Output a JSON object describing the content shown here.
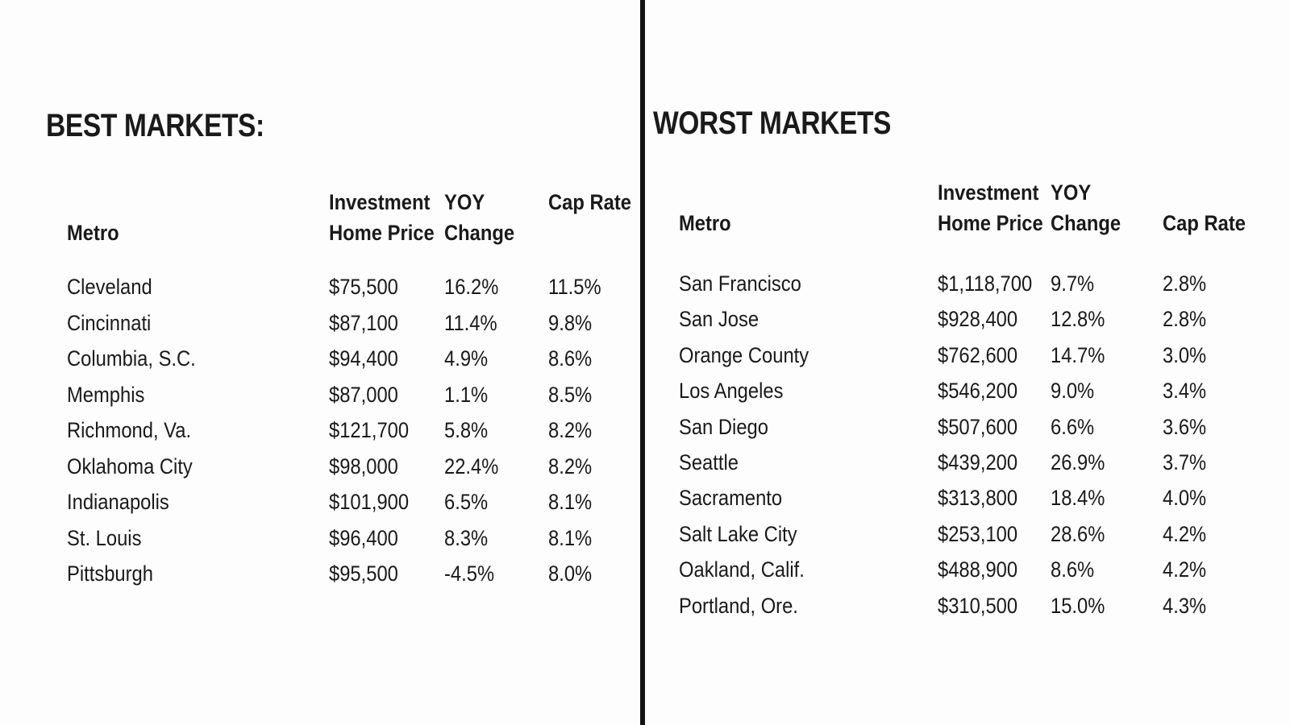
{
  "colors": {
    "text": "#1a1a1a",
    "divider": "#131313",
    "background": "#fdfdfd"
  },
  "chart_data": [
    {
      "type": "table",
      "title": "BEST MARKETS:",
      "columns": [
        {
          "line1": "",
          "line2": "Metro"
        },
        {
          "line1": "Investment",
          "line2": "Home Price"
        },
        {
          "line1": "YOY",
          "line2": "Change"
        },
        {
          "line1": "Cap Rate",
          "line2": ""
        }
      ],
      "rows": [
        {
          "metro": "Cleveland",
          "price": "$75,500",
          "yoy": "16.2%",
          "cap": "11.5%"
        },
        {
          "metro": "Cincinnati",
          "price": "$87,100",
          "yoy": "11.4%",
          "cap": "9.8%"
        },
        {
          "metro": "Columbia, S.C.",
          "price": "$94,400",
          "yoy": "4.9%",
          "cap": "8.6%"
        },
        {
          "metro": "Memphis",
          "price": "$87,000",
          "yoy": "1.1%",
          "cap": "8.5%"
        },
        {
          "metro": "Richmond, Va.",
          "price": "$121,700",
          "yoy": "5.8%",
          "cap": "8.2%"
        },
        {
          "metro": "Oklahoma City",
          "price": "$98,000",
          "yoy": "22.4%",
          "cap": "8.2%"
        },
        {
          "metro": "Indianapolis",
          "price": "$101,900",
          "yoy": "6.5%",
          "cap": "8.1%"
        },
        {
          "metro": "St. Louis",
          "price": "$96,400",
          "yoy": "8.3%",
          "cap": "8.1%"
        },
        {
          "metro": "Pittsburgh",
          "price": "$95,500",
          "yoy": "-4.5%",
          "cap": "8.0%"
        }
      ]
    },
    {
      "type": "table",
      "title": "WORST MARKETS",
      "columns": [
        {
          "line1": "",
          "line2": "Metro"
        },
        {
          "line1": "Investment",
          "line2": "Home Price"
        },
        {
          "line1": "YOY",
          "line2": "Change"
        },
        {
          "line1": "",
          "line2": "Cap Rate"
        }
      ],
      "rows": [
        {
          "metro": "San Francisco",
          "price": "$1,118,700",
          "yoy": "9.7%",
          "cap": "2.8%"
        },
        {
          "metro": "San Jose",
          "price": "$928,400",
          "yoy": "12.8%",
          "cap": "2.8%"
        },
        {
          "metro": "Orange County",
          "price": "$762,600",
          "yoy": "14.7%",
          "cap": "3.0%"
        },
        {
          "metro": "Los Angeles",
          "price": "$546,200",
          "yoy": "9.0%",
          "cap": "3.4%"
        },
        {
          "metro": "San Diego",
          "price": "$507,600",
          "yoy": "6.6%",
          "cap": "3.6%"
        },
        {
          "metro": "Seattle",
          "price": "$439,200",
          "yoy": "26.9%",
          "cap": "3.7%"
        },
        {
          "metro": "Sacramento",
          "price": "$313,800",
          "yoy": "18.4%",
          "cap": "4.0%"
        },
        {
          "metro": "Salt Lake City",
          "price": "$253,100",
          "yoy": "28.6%",
          "cap": "4.2%"
        },
        {
          "metro": "Oakland, Calif.",
          "price": "$488,900",
          "yoy": "8.6%",
          "cap": "4.2%"
        },
        {
          "metro": "Portland, Ore.",
          "price": "$310,500",
          "yoy": "15.0%",
          "cap": "4.3%"
        }
      ]
    }
  ]
}
